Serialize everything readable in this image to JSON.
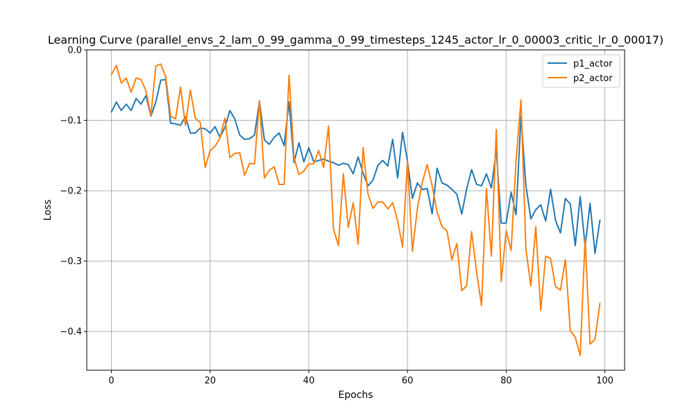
{
  "chart_data": {
    "type": "line",
    "title": "Learning Curve (parallel_envs_2_lam_0_99_gamma_0_99_timesteps_1245_actor_lr_0_00003_critic_lr_0_00017)",
    "xlabel": "Epochs",
    "ylabel": "Loss",
    "xlim": [
      -5,
      104
    ],
    "ylim": [
      -0.455,
      0.0
    ],
    "xticks": [
      0,
      20,
      40,
      60,
      80,
      100
    ],
    "xtick_labels": [
      "0",
      "20",
      "40",
      "60",
      "80",
      "100"
    ],
    "yticks": [
      0.0,
      -0.1,
      -0.2,
      -0.3,
      -0.4
    ],
    "ytick_labels": [
      "0.0",
      "−0.1",
      "−0.2",
      "−0.3",
      "−0.4"
    ],
    "grid": true,
    "legend_position": "top-right",
    "series": [
      {
        "name": "p1_actor",
        "color": "#1f77b4",
        "values": [
          -0.088,
          -0.074,
          -0.086,
          -0.077,
          -0.086,
          -0.069,
          -0.077,
          -0.065,
          -0.094,
          -0.074,
          -0.043,
          -0.042,
          -0.104,
          -0.105,
          -0.107,
          -0.095,
          -0.118,
          -0.118,
          -0.111,
          -0.112,
          -0.118,
          -0.109,
          -0.124,
          -0.11,
          -0.086,
          -0.098,
          -0.121,
          -0.127,
          -0.126,
          -0.121,
          -0.073,
          -0.128,
          -0.134,
          -0.124,
          -0.118,
          -0.136,
          -0.074,
          -0.16,
          -0.132,
          -0.159,
          -0.139,
          -0.159,
          -0.157,
          -0.155,
          -0.158,
          -0.16,
          -0.164,
          -0.161,
          -0.163,
          -0.176,
          -0.152,
          -0.175,
          -0.193,
          -0.185,
          -0.164,
          -0.157,
          -0.165,
          -0.127,
          -0.182,
          -0.117,
          -0.158,
          -0.211,
          -0.189,
          -0.198,
          -0.197,
          -0.233,
          -0.168,
          -0.189,
          -0.192,
          -0.198,
          -0.205,
          -0.233,
          -0.197,
          -0.17,
          -0.191,
          -0.193,
          -0.176,
          -0.196,
          -0.143,
          -0.246,
          -0.246,
          -0.202,
          -0.234,
          -0.094,
          -0.193,
          -0.24,
          -0.227,
          -0.22,
          -0.243,
          -0.198,
          -0.242,
          -0.26,
          -0.211,
          -0.219,
          -0.278,
          -0.208,
          -0.279,
          -0.218,
          -0.289,
          -0.242
        ]
      },
      {
        "name": "p2_actor",
        "color": "#ff7f0e",
        "values": [
          -0.035,
          -0.022,
          -0.047,
          -0.04,
          -0.06,
          -0.04,
          -0.042,
          -0.058,
          -0.093,
          -0.023,
          -0.02,
          -0.038,
          -0.094,
          -0.098,
          -0.053,
          -0.107,
          -0.057,
          -0.097,
          -0.103,
          -0.167,
          -0.143,
          -0.137,
          -0.125,
          -0.097,
          -0.153,
          -0.147,
          -0.146,
          -0.178,
          -0.161,
          -0.162,
          -0.072,
          -0.182,
          -0.171,
          -0.166,
          -0.191,
          -0.191,
          -0.036,
          -0.153,
          -0.177,
          -0.172,
          -0.162,
          -0.162,
          -0.143,
          -0.167,
          -0.108,
          -0.254,
          -0.278,
          -0.176,
          -0.252,
          -0.217,
          -0.276,
          -0.139,
          -0.205,
          -0.225,
          -0.216,
          -0.216,
          -0.226,
          -0.217,
          -0.243,
          -0.28,
          -0.158,
          -0.286,
          -0.225,
          -0.188,
          -0.163,
          -0.193,
          -0.23,
          -0.251,
          -0.257,
          -0.298,
          -0.275,
          -0.342,
          -0.335,
          -0.258,
          -0.315,
          -0.363,
          -0.197,
          -0.293,
          -0.113,
          -0.329,
          -0.257,
          -0.285,
          -0.157,
          -0.071,
          -0.283,
          -0.335,
          -0.251,
          -0.37,
          -0.293,
          -0.296,
          -0.336,
          -0.341,
          -0.298,
          -0.399,
          -0.408,
          -0.434,
          -0.268,
          -0.418,
          -0.411,
          -0.36
        ]
      }
    ]
  }
}
